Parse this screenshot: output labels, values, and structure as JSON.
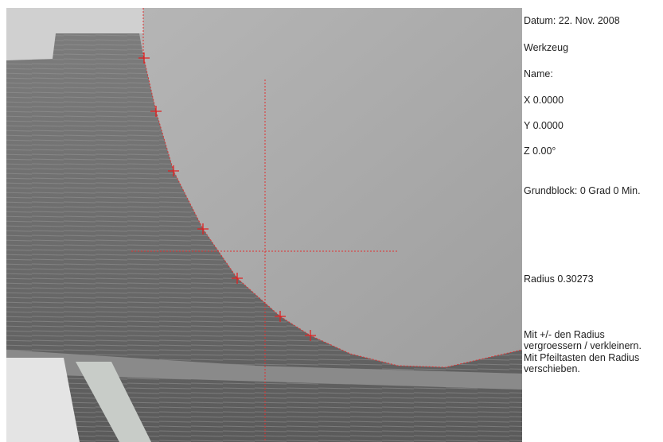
{
  "panel": {
    "date": "Datum: 22. Nov. 2008",
    "tool": "Werkzeug",
    "name": "Name:",
    "x": "X  0.0000",
    "y": "Y  0.0000",
    "z": "Z  0.00°",
    "base_block": "Grundblock: 0 Grad 0 Min.",
    "radius": "Radius  0.30273",
    "help": [
      "Mit +/- den Radius",
      "vergroessern / verkleinern.",
      "Mit Pfeiltasten den Radius",
      "verschieben."
    ]
  }
}
